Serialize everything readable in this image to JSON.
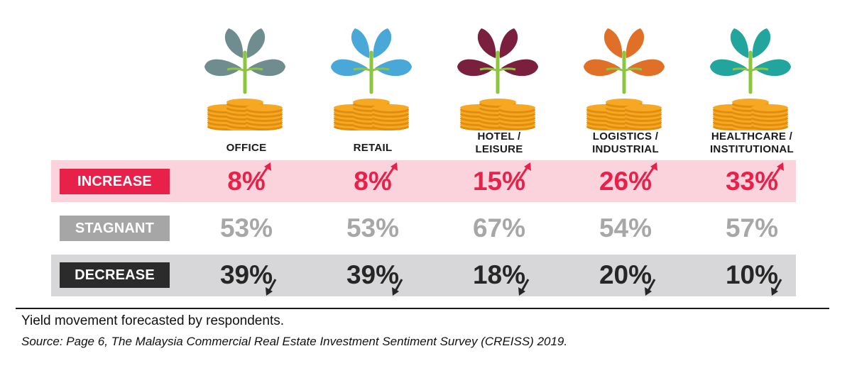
{
  "chart_data": {
    "type": "table",
    "title": "",
    "categories": [
      "OFFICE",
      "RETAIL",
      "HOTEL / LEISURE",
      "LOGISTICS / INDUSTRIAL",
      "HEALTHCARE / INSTITUTIONAL"
    ],
    "category_lines": [
      [
        "OFFICE"
      ],
      [
        "RETAIL"
      ],
      [
        "HOTEL /",
        "LEISURE"
      ],
      [
        "LOGISTICS /",
        "INDUSTRIAL"
      ],
      [
        "HEALTHCARE /",
        "INSTITUTIONAL"
      ]
    ],
    "series": [
      {
        "name": "INCREASE",
        "values": [
          8,
          8,
          15,
          26,
          33
        ],
        "labels": [
          "8%",
          "8%",
          "15%",
          "26%",
          "33%"
        ]
      },
      {
        "name": "STAGNANT",
        "values": [
          53,
          53,
          67,
          54,
          57
        ],
        "labels": [
          "53%",
          "53%",
          "67%",
          "54%",
          "57%"
        ]
      },
      {
        "name": "DECREASE",
        "values": [
          39,
          39,
          18,
          20,
          10
        ],
        "labels": [
          "39%",
          "39%",
          "18%",
          "20%",
          "10%"
        ]
      }
    ],
    "unit": "%"
  },
  "colors": {
    "increase_text": "#e8214a",
    "increase_band": "#fbd3dc",
    "stagnant_text": "#a7a7a7",
    "stagnant_label": "#a6a6a6",
    "decrease_text": "#262626",
    "decrease_band": "#d7d7d9",
    "decrease_label": "#2b2b2b",
    "leaf_colors": [
      "#6f8d8f",
      "#4aa8d8",
      "#7a1f3d",
      "#e07028",
      "#21a59c"
    ],
    "stem": "#8cc63f",
    "coin": "#f7a823"
  },
  "icons": [
    "plant-coins-icon",
    "arrow-up-icon",
    "arrow-down-icon"
  ],
  "footer": {
    "caption": "Yield movement forecasted by respondents.",
    "source": "Source: Page 6, The Malaysia Commercial Real Estate Investment Sentiment Survey (CREISS) 2019."
  }
}
